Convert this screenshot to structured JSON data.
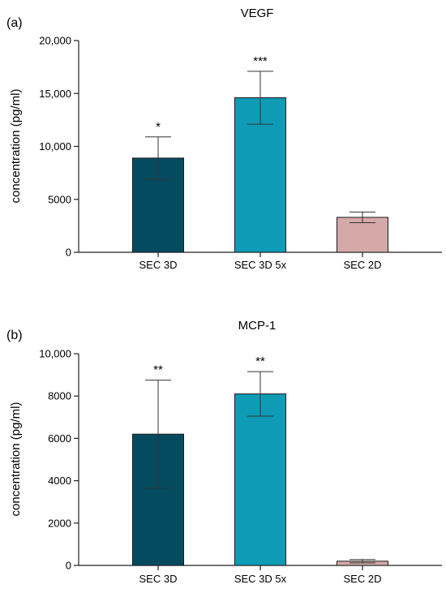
{
  "chart_data": [
    {
      "type": "bar",
      "panel_label": "(a)",
      "title": "VEGF",
      "ylabel": "concentration (pg/ml)",
      "xlabel": "",
      "ylim": [
        0,
        20000
      ],
      "ticks": [
        0,
        5000,
        10000,
        15000,
        20000
      ],
      "tick_labels": [
        "0",
        "5000",
        "10,000",
        "15,000",
        "20,000"
      ],
      "categories": [
        "SEC 3D",
        "SEC 3D 5x",
        "SEC 2D"
      ],
      "values": [
        8900,
        14600,
        3300
      ],
      "errors": [
        2000,
        2500,
        500
      ],
      "significance": [
        "*",
        "***",
        ""
      ],
      "colors": [
        "#054b60",
        "#0e9bb5",
        "#d4a9a8"
      ]
    },
    {
      "type": "bar",
      "panel_label": "(b)",
      "title": "MCP-1",
      "ylabel": "concentration (pg/ml)",
      "xlabel": "",
      "ylim": [
        0,
        10000
      ],
      "ticks": [
        0,
        2000,
        4000,
        6000,
        8000,
        10000
      ],
      "tick_labels": [
        "0",
        "2000",
        "4000",
        "6000",
        "8000",
        "10,000"
      ],
      "categories": [
        "SEC 3D",
        "SEC 3D 5x",
        "SEC 2D"
      ],
      "values": [
        6200,
        8100,
        200
      ],
      "errors": [
        2550,
        1050,
        80
      ],
      "significance": [
        "**",
        "**",
        ""
      ],
      "colors": [
        "#054b60",
        "#0e9bb5",
        "#d4a9a8"
      ]
    }
  ]
}
